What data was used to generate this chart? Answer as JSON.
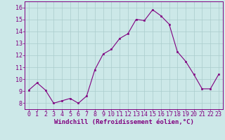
{
  "hours": [
    0,
    1,
    2,
    3,
    4,
    5,
    6,
    7,
    8,
    9,
    10,
    11,
    12,
    13,
    14,
    15,
    16,
    17,
    18,
    19,
    20,
    21,
    22,
    23
  ],
  "values": [
    9.1,
    9.7,
    9.1,
    8.0,
    8.2,
    8.4,
    8.0,
    8.6,
    10.8,
    12.1,
    12.5,
    13.4,
    13.8,
    15.0,
    14.9,
    15.8,
    15.3,
    14.6,
    12.3,
    11.5,
    10.4,
    9.2,
    9.2,
    10.4
  ],
  "xlim": [
    -0.5,
    23.5
  ],
  "ylim": [
    7.5,
    16.5
  ],
  "yticks": [
    8,
    9,
    10,
    11,
    12,
    13,
    14,
    15,
    16
  ],
  "xticks": [
    0,
    1,
    2,
    3,
    4,
    5,
    6,
    7,
    8,
    9,
    10,
    11,
    12,
    13,
    14,
    15,
    16,
    17,
    18,
    19,
    20,
    21,
    22,
    23
  ],
  "line_color": "#800080",
  "marker_color": "#800080",
  "bg_color": "#cce8e8",
  "grid_color": "#aacccc",
  "xlabel": "Windchill (Refroidissement éolien,°C)",
  "xlabel_fontsize": 6.5,
  "tick_fontsize": 6.0,
  "figsize": [
    3.2,
    2.0
  ],
  "dpi": 100
}
